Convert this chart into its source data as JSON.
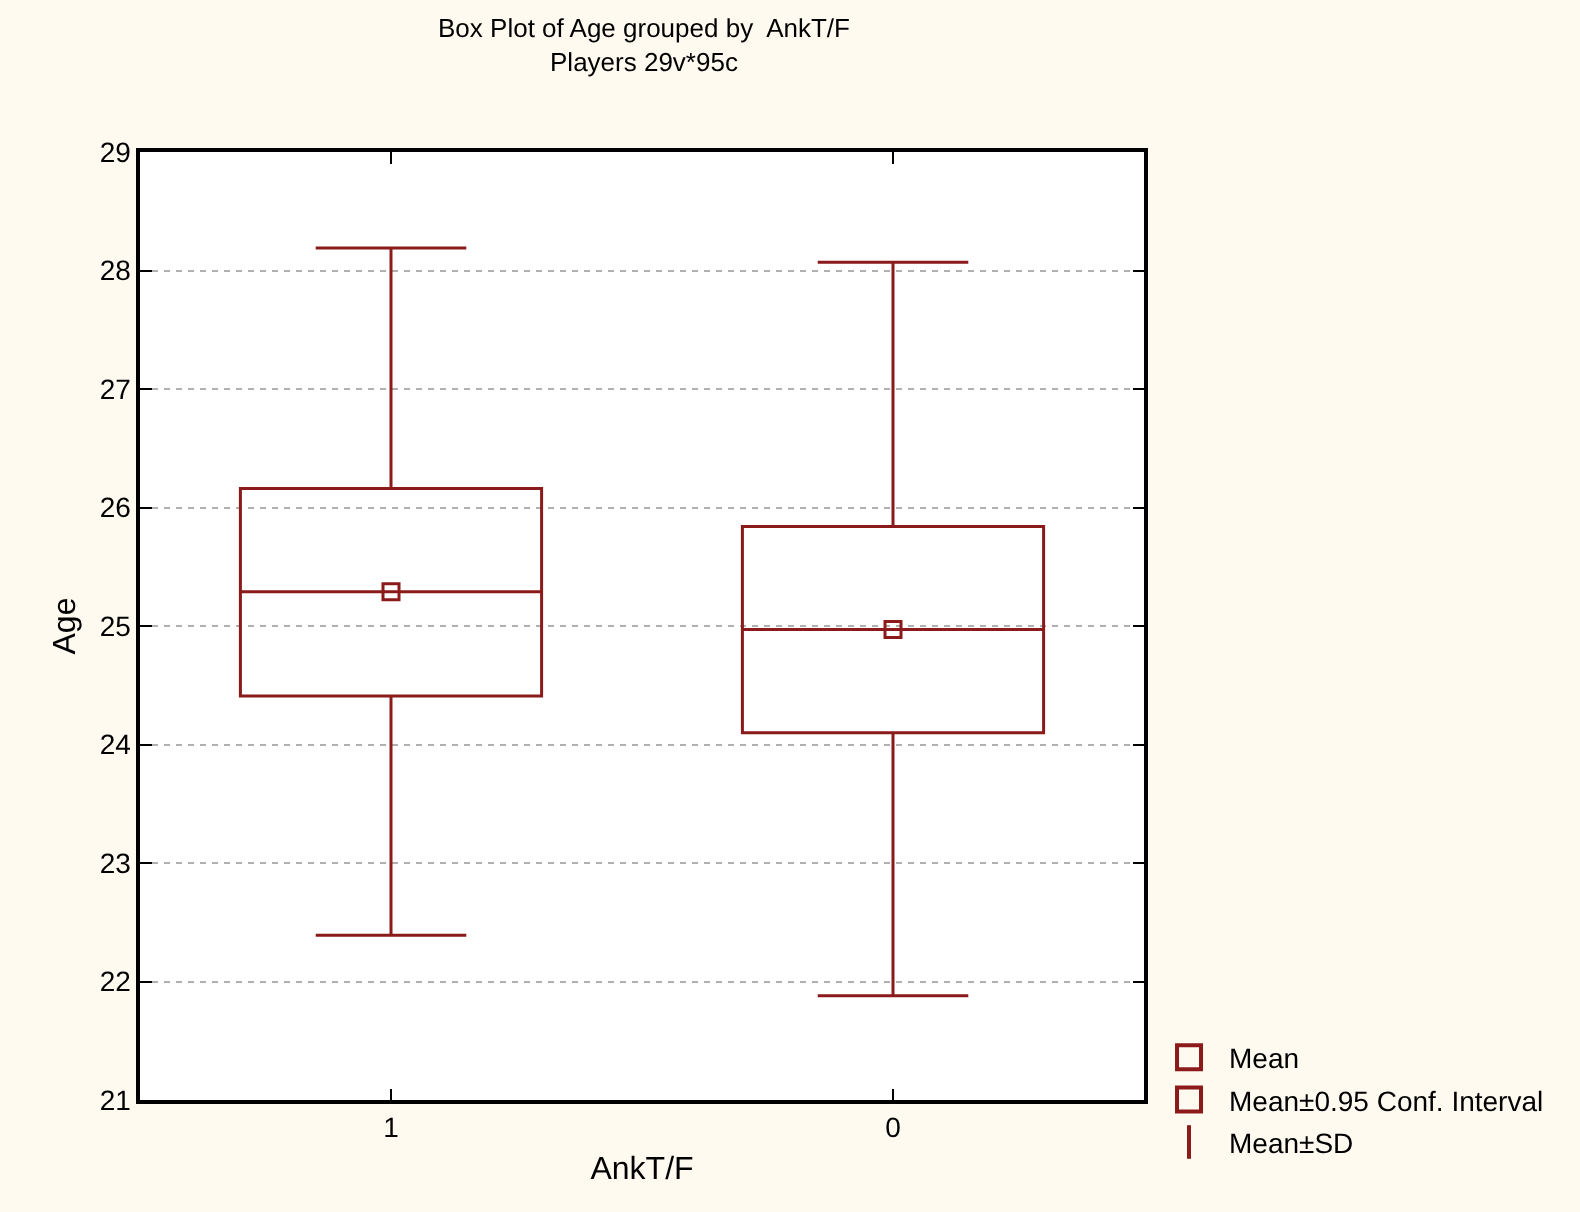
{
  "chart_data": {
    "type": "box",
    "title": "Box Plot of Age grouped by  AnkT/F",
    "subtitle": "Players 29v*95c",
    "xlabel": "AnkT/F",
    "ylabel": "Age",
    "categories": [
      "1",
      "0"
    ],
    "ylim": [
      21,
      29
    ],
    "yticks": [
      21,
      22,
      23,
      24,
      25,
      26,
      27,
      28,
      29
    ],
    "grid": "y",
    "legend": "bottom right",
    "annotations": [
      "Mean±SD"
    ],
    "series": [
      {
        "type": "scatter",
        "name": "Mean",
        "color": "#8b1a1a",
        "marker": "square",
        "values": [
          25.29,
          24.97
        ]
      },
      {
        "name": "Mean±0.95 Conf. Interval",
        "color": "#8b1a1a",
        "boxes": [
          {
            "low": 22.39,
            "q1": 24.41,
            "median": 25.29,
            "q3": 26.16,
            "high": 28.19
          },
          {
            "low": 21.88,
            "q1": 24.1,
            "median": 24.97,
            "q3": 25.84,
            "high": 28.07
          }
        ]
      }
    ]
  }
}
